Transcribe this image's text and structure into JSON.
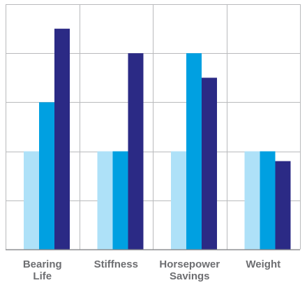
{
  "chart_data": {
    "type": "bar",
    "title": "",
    "xlabel": "",
    "ylabel": "",
    "categories": [
      "Bearing\nLife",
      "Stiffness",
      "Horsepower\nSavings",
      "Weight"
    ],
    "series": [
      {
        "color": "#aee1f8",
        "values": [
          2,
          2,
          2,
          2
        ]
      },
      {
        "color": "#00a0e1",
        "values": [
          3,
          2,
          4,
          2
        ]
      },
      {
        "color": "#2b2a85",
        "values": [
          4.5,
          4,
          3.5,
          1.8
        ]
      }
    ],
    "ylim": [
      0,
      5
    ],
    "grid": true,
    "legend": "none",
    "colors": {
      "grid": "#b9babc",
      "axis": "#8d8e90",
      "label": "#6d6e71"
    }
  }
}
